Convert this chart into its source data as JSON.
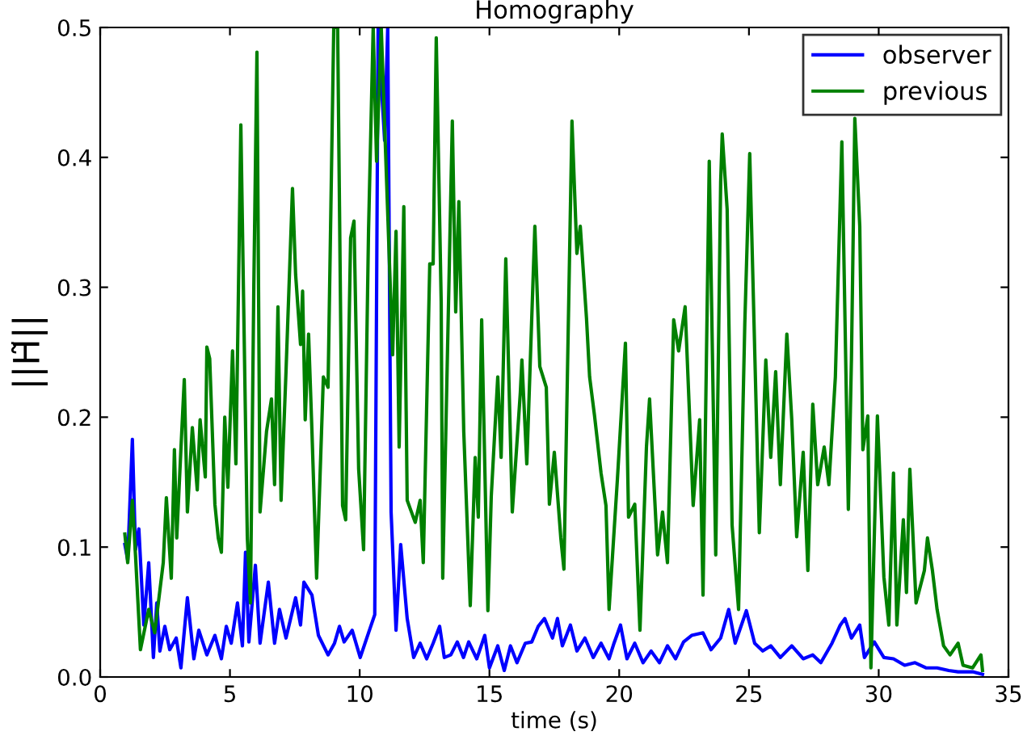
{
  "chart_data": {
    "type": "line",
    "title": "Homography",
    "xlabel": "time (s)",
    "ylabel": "||H̃||",
    "xlim": [
      0,
      35
    ],
    "ylim": [
      0,
      0.5
    ],
    "xticks": [
      0,
      5,
      10,
      15,
      20,
      25,
      30,
      35
    ],
    "yticks": [
      {
        "value": 0,
        "label": "0.0"
      },
      {
        "value": 0.1,
        "label": "0.1"
      },
      {
        "value": 0.2,
        "label": "0.2"
      },
      {
        "value": 0.3,
        "label": "0.3"
      },
      {
        "value": 0.4,
        "label": "0.4"
      },
      {
        "value": 0.5,
        "label": "0.5"
      }
    ],
    "grid": false,
    "legend": "top right",
    "marker": "none",
    "line_style": "solid",
    "series": [
      {
        "name": "observer",
        "color": "#0000ff",
        "x": [
          0.95,
          1.06,
          1.24,
          1.36,
          1.49,
          1.68,
          1.87,
          2.05,
          2.18,
          2.3,
          2.49,
          2.68,
          2.93,
          3.11,
          3.36,
          3.61,
          3.8,
          4.11,
          4.42,
          4.67,
          4.86,
          5.05,
          5.29,
          5.48,
          5.6,
          5.73,
          5.98,
          6.16,
          6.48,
          6.72,
          6.91,
          7.16,
          7.53,
          7.72,
          7.85,
          8.16,
          8.41,
          8.78,
          9.03,
          9.22,
          9.4,
          9.71,
          10.02,
          10.34,
          10.58,
          10.71,
          10.96,
          11.08,
          11.21,
          11.4,
          11.58,
          11.83,
          12.08,
          12.33,
          12.58,
          12.83,
          13.08,
          13.26,
          13.51,
          13.76,
          14.0,
          14.2,
          14.51,
          14.82,
          15.0,
          15.32,
          15.57,
          15.81,
          16.06,
          16.38,
          16.63,
          16.88,
          17.12,
          17.43,
          17.62,
          17.81,
          18.12,
          18.37,
          18.68,
          19.0,
          19.3,
          19.61,
          19.8,
          20.05,
          20.3,
          20.6,
          20.92,
          21.23,
          21.55,
          21.86,
          22.17,
          22.48,
          22.79,
          23.23,
          23.54,
          23.91,
          24.22,
          24.47,
          24.9,
          25.22,
          25.53,
          25.84,
          26.21,
          26.65,
          27.09,
          27.46,
          27.77,
          28.2,
          28.52,
          28.7,
          28.95,
          29.27,
          29.45,
          29.83,
          30.2,
          30.57,
          31.0,
          31.4,
          31.82,
          32.25,
          32.7,
          33.06,
          33.62,
          34.0
        ],
        "values": [
          0.102,
          0.09,
          0.183,
          0.098,
          0.114,
          0.04,
          0.088,
          0.015,
          0.057,
          0.02,
          0.039,
          0.021,
          0.03,
          0.007,
          0.061,
          0.014,
          0.036,
          0.017,
          0.032,
          0.014,
          0.039,
          0.026,
          0.057,
          0.024,
          0.096,
          0.027,
          0.086,
          0.026,
          0.073,
          0.026,
          0.052,
          0.03,
          0.061,
          0.04,
          0.073,
          0.063,
          0.032,
          0.017,
          0.026,
          0.039,
          0.027,
          0.036,
          0.015,
          0.034,
          0.048,
          0.5,
          0.413,
          0.5,
          0.127,
          0.036,
          0.102,
          0.045,
          0.015,
          0.026,
          0.014,
          0.026,
          0.039,
          0.015,
          0.017,
          0.027,
          0.015,
          0.027,
          0.014,
          0.032,
          0.007,
          0.024,
          0.005,
          0.024,
          0.011,
          0.026,
          0.027,
          0.039,
          0.045,
          0.03,
          0.045,
          0.024,
          0.04,
          0.02,
          0.03,
          0.015,
          0.026,
          0.014,
          0.026,
          0.04,
          0.014,
          0.026,
          0.011,
          0.02,
          0.011,
          0.024,
          0.014,
          0.027,
          0.032,
          0.034,
          0.021,
          0.03,
          0.052,
          0.026,
          0.051,
          0.026,
          0.02,
          0.024,
          0.015,
          0.024,
          0.014,
          0.017,
          0.011,
          0.026,
          0.04,
          0.045,
          0.03,
          0.04,
          0.015,
          0.027,
          0.015,
          0.014,
          0.009,
          0.011,
          0.007,
          0.007,
          0.005,
          0.004,
          0.004,
          0.002
        ]
      },
      {
        "name": "previous",
        "color": "#008000",
        "x": [
          0.95,
          1.06,
          1.24,
          1.36,
          1.55,
          1.87,
          2.1,
          2.43,
          2.55,
          2.74,
          2.86,
          2.95,
          3.1,
          3.24,
          3.36,
          3.55,
          3.74,
          3.85,
          4.05,
          4.11,
          4.22,
          4.42,
          4.55,
          4.67,
          4.8,
          4.92,
          5.1,
          5.23,
          5.42,
          5.67,
          5.79,
          5.92,
          6.04,
          6.16,
          6.41,
          6.6,
          6.72,
          6.85,
          6.97,
          7.16,
          7.41,
          7.53,
          7.72,
          7.8,
          7.9,
          8.03,
          8.16,
          8.34,
          8.6,
          8.78,
          9.0,
          9.15,
          9.34,
          9.46,
          9.65,
          9.78,
          9.96,
          10.15,
          10.34,
          10.52,
          10.65,
          10.83,
          11.27,
          11.4,
          11.52,
          11.7,
          11.83,
          12.14,
          12.33,
          12.45,
          12.7,
          12.83,
          12.95,
          13.14,
          13.2,
          13.57,
          13.7,
          13.82,
          14.01,
          14.26,
          14.45,
          14.57,
          14.7,
          14.94,
          15.07,
          15.32,
          15.45,
          15.63,
          15.88,
          16.19,
          16.25,
          16.44,
          16.75,
          16.94,
          17.19,
          17.31,
          17.5,
          17.75,
          17.87,
          18.18,
          18.37,
          18.5,
          18.74,
          18.86,
          19.05,
          19.3,
          19.49,
          19.61,
          19.93,
          20.24,
          20.36,
          20.6,
          20.8,
          21.05,
          21.17,
          21.48,
          21.67,
          21.86,
          22.1,
          22.29,
          22.54,
          22.73,
          22.85,
          23.1,
          23.23,
          23.47,
          23.72,
          23.91,
          23.97,
          24.16,
          24.35,
          24.6,
          24.84,
          25.03,
          25.4,
          25.65,
          25.84,
          26.03,
          26.21,
          26.46,
          26.65,
          26.84,
          27.09,
          27.27,
          27.46,
          27.65,
          27.9,
          28.08,
          28.33,
          28.58,
          28.83,
          28.95,
          29.08,
          29.27,
          29.39,
          29.58,
          29.7,
          29.95,
          30.2,
          30.39,
          30.57,
          30.7,
          30.95,
          31.07,
          31.2,
          31.44,
          31.76,
          31.88,
          32.07,
          32.25,
          32.5,
          32.75,
          33.06,
          33.25,
          33.62,
          33.94,
          34.0
        ],
        "values": [
          0.11,
          0.088,
          0.136,
          0.094,
          0.021,
          0.052,
          0.034,
          0.088,
          0.138,
          0.076,
          0.175,
          0.107,
          0.171,
          0.229,
          0.127,
          0.192,
          0.144,
          0.198,
          0.154,
          0.254,
          0.245,
          0.133,
          0.107,
          0.096,
          0.2,
          0.146,
          0.251,
          0.164,
          0.425,
          0.107,
          0.057,
          0.301,
          0.481,
          0.127,
          0.189,
          0.214,
          0.148,
          0.285,
          0.136,
          0.235,
          0.376,
          0.31,
          0.256,
          0.297,
          0.198,
          0.264,
          0.189,
          0.076,
          0.231,
          0.223,
          0.5,
          0.5,
          0.132,
          0.121,
          0.338,
          0.351,
          0.16,
          0.098,
          0.343,
          0.5,
          0.397,
          0.5,
          0.248,
          0.343,
          0.177,
          0.362,
          0.136,
          0.119,
          0.136,
          0.088,
          0.318,
          0.318,
          0.492,
          0.289,
          0.076,
          0.428,
          0.281,
          0.366,
          0.189,
          0.055,
          0.169,
          0.123,
          0.275,
          0.051,
          0.139,
          0.231,
          0.169,
          0.322,
          0.127,
          0.219,
          0.244,
          0.164,
          0.347,
          0.239,
          0.223,
          0.133,
          0.173,
          0.107,
          0.083,
          0.428,
          0.326,
          0.347,
          0.276,
          0.231,
          0.201,
          0.157,
          0.132,
          0.052,
          0.152,
          0.257,
          0.123,
          0.133,
          0.036,
          0.177,
          0.214,
          0.094,
          0.127,
          0.088,
          0.275,
          0.251,
          0.285,
          0.192,
          0.132,
          0.198,
          0.063,
          0.397,
          0.094,
          0.381,
          0.418,
          0.36,
          0.117,
          0.052,
          0.272,
          0.403,
          0.111,
          0.244,
          0.169,
          0.235,
          0.148,
          0.264,
          0.198,
          0.108,
          0.173,
          0.082,
          0.21,
          0.148,
          0.177,
          0.148,
          0.231,
          0.412,
          0.129,
          0.245,
          0.43,
          0.347,
          0.175,
          0.201,
          0.007,
          0.201,
          0.077,
          0.04,
          0.157,
          0.04,
          0.121,
          0.065,
          0.16,
          0.057,
          0.082,
          0.107,
          0.082,
          0.052,
          0.024,
          0.017,
          0.026,
          0.009,
          0.007,
          0.017,
          0.005
        ]
      }
    ]
  }
}
